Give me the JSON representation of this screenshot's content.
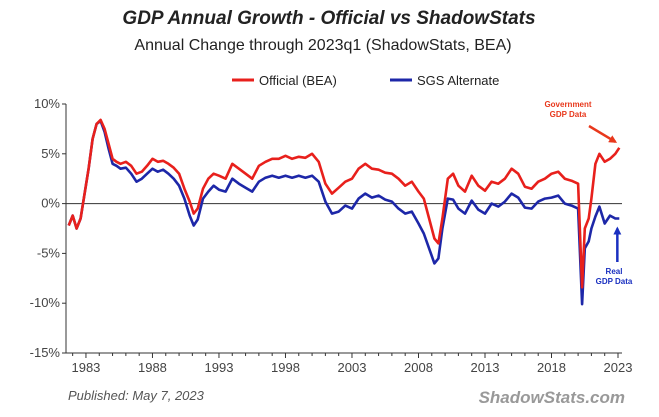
{
  "chart_data": {
    "type": "line",
    "title": "GDP Annual Growth - Official vs ShadowStats",
    "subtitle": "Annual Change through 2023q1   (ShadowStats, BEA)",
    "xlabel": "",
    "ylabel": "",
    "xlim": [
      1981.5,
      2023.3
    ],
    "ylim": [
      -15,
      10
    ],
    "y_ticks": [
      -15,
      -10,
      -5,
      0,
      5,
      10
    ],
    "y_tick_labels": [
      "-15%",
      "-10%",
      "-5%",
      "0%",
      "5%",
      "10%"
    ],
    "x_tick_labels": [
      "1983",
      "1988",
      "1993",
      "1998",
      "2003",
      "2008",
      "2013",
      "2018",
      "2023"
    ],
    "x_tick_values": [
      1983,
      1988,
      1993,
      1998,
      2003,
      2008,
      2013,
      2018,
      2023
    ],
    "grid": false,
    "legend_position": "top-center",
    "series": [
      {
        "name": "Official (BEA)",
        "color": "#e8201c",
        "x": [
          1981.7,
          1982.0,
          1982.3,
          1982.6,
          1982.9,
          1983.2,
          1983.5,
          1983.8,
          1984.1,
          1984.4,
          1984.7,
          1985.0,
          1985.3,
          1985.6,
          1986.0,
          1986.4,
          1986.8,
          1987.2,
          1987.6,
          1988.0,
          1988.4,
          1988.8,
          1989.2,
          1989.6,
          1990.0,
          1990.4,
          1990.8,
          1991.1,
          1991.4,
          1991.8,
          1992.2,
          1992.6,
          1993.0,
          1993.5,
          1994.0,
          1994.5,
          1995.0,
          1995.5,
          1996.0,
          1996.5,
          1997.0,
          1997.5,
          1998.0,
          1998.5,
          1999.0,
          1999.5,
          2000.0,
          2000.5,
          2001.0,
          2001.5,
          2002.0,
          2002.5,
          2003.0,
          2003.5,
          2004.0,
          2004.5,
          2005.0,
          2005.5,
          2006.0,
          2006.5,
          2007.0,
          2007.5,
          2008.0,
          2008.4,
          2008.8,
          2009.2,
          2009.5,
          2009.8,
          2010.2,
          2010.6,
          2011.0,
          2011.5,
          2012.0,
          2012.5,
          2013.0,
          2013.5,
          2014.0,
          2014.5,
          2015.0,
          2015.5,
          2016.0,
          2016.5,
          2017.0,
          2017.5,
          2018.0,
          2018.5,
          2019.0,
          2019.5,
          2020.0,
          2020.3,
          2020.5,
          2020.8,
          2021.0,
          2021.3,
          2021.6,
          2022.0,
          2022.4,
          2022.8,
          2023.1
        ],
        "values": [
          -2.2,
          -1.2,
          -2.5,
          -1.5,
          1.0,
          3.5,
          6.5,
          8.0,
          8.4,
          7.5,
          6.0,
          4.5,
          4.2,
          4.0,
          4.2,
          3.8,
          3.0,
          3.2,
          3.8,
          4.5,
          4.2,
          4.3,
          4.0,
          3.6,
          3.0,
          1.5,
          0.2,
          -1.0,
          -0.5,
          1.5,
          2.5,
          3.0,
          2.8,
          2.5,
          4.0,
          3.5,
          3.0,
          2.5,
          3.8,
          4.2,
          4.5,
          4.5,
          4.8,
          4.5,
          4.7,
          4.6,
          5.0,
          4.2,
          2.0,
          1.0,
          1.6,
          2.2,
          2.5,
          3.5,
          4.0,
          3.5,
          3.4,
          3.1,
          3.0,
          2.5,
          1.8,
          2.2,
          1.2,
          0.5,
          -1.5,
          -3.5,
          -4.0,
          -1.5,
          2.5,
          3.0,
          1.8,
          1.2,
          2.8,
          1.8,
          1.3,
          2.2,
          2.0,
          2.5,
          3.5,
          3.0,
          1.7,
          1.5,
          2.2,
          2.5,
          3.0,
          3.2,
          2.5,
          2.3,
          2.0,
          -8.4,
          -2.5,
          -1.5,
          0.5,
          4.0,
          5.0,
          4.2,
          4.5,
          5.0,
          5.6
        ]
      },
      {
        "name": "SGS Alternate",
        "color": "#1d27a8",
        "x": [
          1981.7,
          1982.0,
          1982.3,
          1982.6,
          1982.9,
          1983.2,
          1983.5,
          1983.8,
          1984.1,
          1984.4,
          1984.7,
          1985.0,
          1985.3,
          1985.6,
          1986.0,
          1986.4,
          1986.8,
          1987.2,
          1987.6,
          1988.0,
          1988.4,
          1988.8,
          1989.2,
          1989.6,
          1990.0,
          1990.4,
          1990.8,
          1991.1,
          1991.4,
          1991.8,
          1992.2,
          1992.6,
          1993.0,
          1993.5,
          1994.0,
          1994.5,
          1995.0,
          1995.5,
          1996.0,
          1996.5,
          1997.0,
          1997.5,
          1998.0,
          1998.5,
          1999.0,
          1999.5,
          2000.0,
          2000.5,
          2001.0,
          2001.5,
          2002.0,
          2002.5,
          2003.0,
          2003.5,
          2004.0,
          2004.5,
          2005.0,
          2005.5,
          2006.0,
          2006.5,
          2007.0,
          2007.5,
          2008.0,
          2008.4,
          2008.8,
          2009.2,
          2009.5,
          2009.8,
          2010.2,
          2010.6,
          2011.0,
          2011.5,
          2012.0,
          2012.5,
          2013.0,
          2013.5,
          2014.0,
          2014.5,
          2015.0,
          2015.5,
          2016.0,
          2016.5,
          2017.0,
          2017.5,
          2018.0,
          2018.5,
          2019.0,
          2019.5,
          2020.0,
          2020.3,
          2020.5,
          2020.8,
          2021.0,
          2021.3,
          2021.6,
          2022.0,
          2022.4,
          2022.8,
          2023.1
        ],
        "values": [
          -2.2,
          -1.2,
          -2.5,
          -1.5,
          1.0,
          3.5,
          6.5,
          8.0,
          8.3,
          7.2,
          5.5,
          4.0,
          3.8,
          3.5,
          3.6,
          3.0,
          2.2,
          2.5,
          3.0,
          3.5,
          3.2,
          3.4,
          3.0,
          2.5,
          1.8,
          0.5,
          -1.2,
          -2.2,
          -1.6,
          0.5,
          1.2,
          1.8,
          1.4,
          1.2,
          2.5,
          2.0,
          1.6,
          1.2,
          2.2,
          2.6,
          2.8,
          2.6,
          2.8,
          2.6,
          2.8,
          2.6,
          2.8,
          2.2,
          0.2,
          -1.0,
          -0.8,
          -0.2,
          -0.5,
          0.5,
          1.0,
          0.6,
          0.8,
          0.4,
          0.2,
          -0.5,
          -1.0,
          -0.8,
          -2.0,
          -3.0,
          -4.5,
          -6.0,
          -5.5,
          -2.5,
          0.5,
          0.4,
          -0.5,
          -1.0,
          0.3,
          -0.6,
          -1.0,
          0.0,
          -0.3,
          0.2,
          1.0,
          0.6,
          -0.4,
          -0.5,
          0.2,
          0.5,
          0.6,
          0.8,
          0.0,
          -0.2,
          -0.5,
          -10.1,
          -4.5,
          -3.8,
          -2.5,
          -1.3,
          -0.3,
          -2.0,
          -1.2,
          -1.5,
          -1.5
        ]
      }
    ],
    "annotations": [
      {
        "name": "government-gdp-annotation",
        "lines": [
          "Government",
          "GDP Data"
        ],
        "color": "#e8381c",
        "points_to": [
          2023.1,
          5.6
        ]
      },
      {
        "name": "real-gdp-annotation",
        "lines": [
          "Real",
          "GDP Data"
        ],
        "color": "#1a30c0",
        "points_to": [
          2023.1,
          -1.5
        ]
      }
    ],
    "footer": {
      "published": "Published: May 7, 2023",
      "brand": "ShadowStats.com"
    }
  }
}
